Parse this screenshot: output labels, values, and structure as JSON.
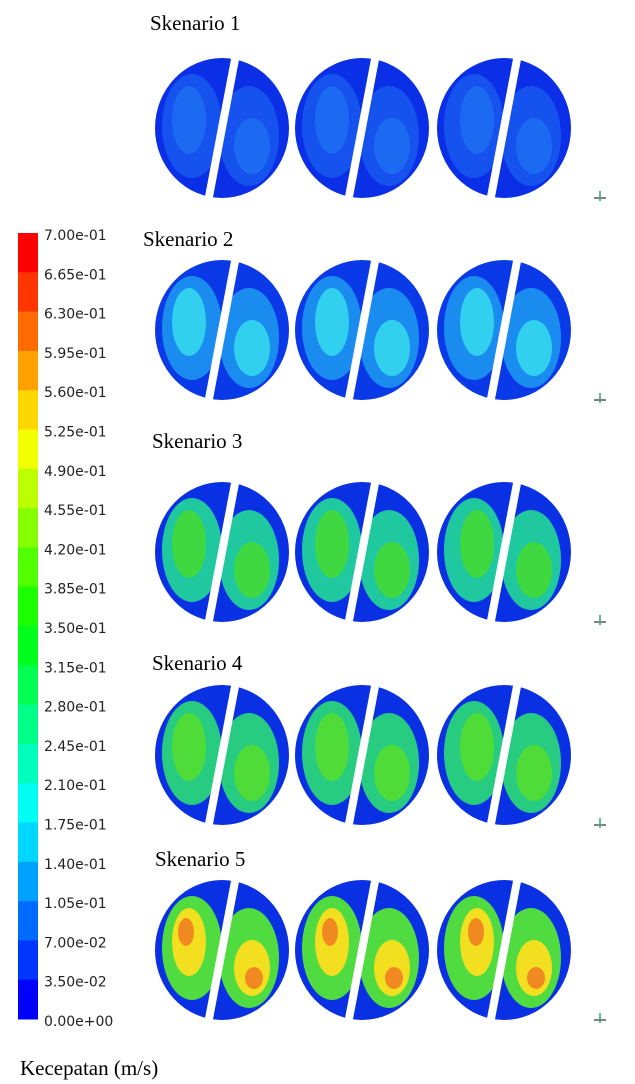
{
  "scenarios": [
    {
      "title": "Skenario 1"
    },
    {
      "title": "Skenario 2"
    },
    {
      "title": "Skenario 3"
    },
    {
      "title": "Skenario 4"
    },
    {
      "title": "Skenario 5"
    }
  ],
  "colorbar": {
    "labels": [
      "7.00e-01",
      "6.65e-01",
      "6.30e-01",
      "5.95e-01",
      "5.60e-01",
      "5.25e-01",
      "4.90e-01",
      "4.55e-01",
      "4.20e-01",
      "3.85e-01",
      "3.50e-01",
      "3.15e-01",
      "2.80e-01",
      "2.45e-01",
      "2.10e-01",
      "1.75e-01",
      "1.40e-01",
      "1.05e-01",
      "7.00e-02",
      "3.50e-02",
      "0.00e+00"
    ],
    "title": "Kecepatan (m/s)"
  }
}
